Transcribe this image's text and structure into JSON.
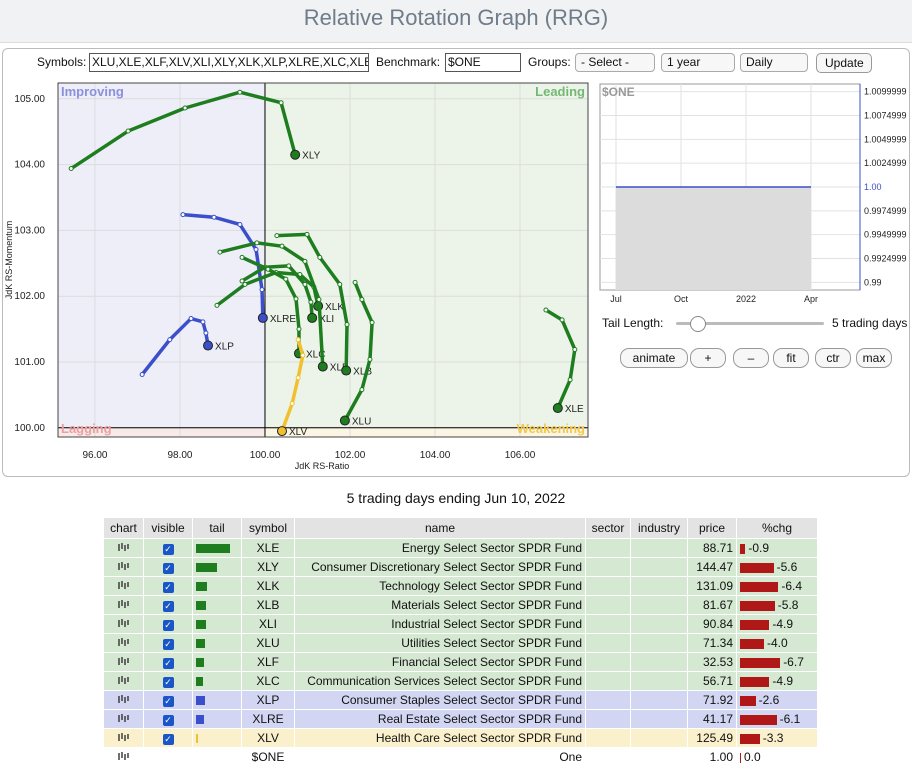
{
  "header": {
    "title": "Relative Rotation Graph (RRG)"
  },
  "controls": {
    "symbols_label": "Symbols:",
    "symbols": "XLU,XLE,XLF,XLV,XLI,XLY,XLK,XLP,XLRE,XLC,XLB",
    "benchmark_label": "Benchmark:",
    "benchmark": "$ONE",
    "groups_label": "Groups:",
    "groups": "- Select -",
    "period": "1 year",
    "interval": "Daily",
    "update": "Update",
    "tail_length_label": "Tail Length:",
    "tail_length": "5 trading days",
    "buttons": [
      "animate",
      "+",
      "–",
      "fit",
      "ctr",
      "max"
    ]
  },
  "chart_data": [
    {
      "type": "rrg",
      "xlabel": "JdK RS-Ratio",
      "ylabel": "JdK RS-Momentum",
      "xlim": [
        95.13,
        107.6
      ],
      "ylim": [
        99.86,
        105.24
      ],
      "xticks": [
        {
          "value": 96,
          "label": "96.00"
        },
        {
          "value": 98,
          "label": "98.00"
        },
        {
          "value": 100,
          "label": "100.00"
        },
        {
          "value": 102,
          "label": "102.00"
        },
        {
          "value": 104,
          "label": "104.00"
        },
        {
          "value": 106,
          "label": "106.00"
        }
      ],
      "yticks": [
        {
          "value": 100,
          "label": "100.00"
        },
        {
          "value": 101,
          "label": "101.00"
        },
        {
          "value": 102,
          "label": "102.00"
        },
        {
          "value": 103,
          "label": "103.00"
        },
        {
          "value": 104,
          "label": "104.00"
        },
        {
          "value": 105,
          "label": "105.00"
        }
      ],
      "reference_lines": {
        "x": 100,
        "y": 100
      },
      "quadrants": {
        "improving": "Improving",
        "leading": "Leading",
        "lagging": "Lagging",
        "weakening": "Weakening"
      },
      "series": [
        {
          "name": "XLY",
          "color": "#1e7d1e",
          "x": [
            95.44,
            96.78,
            98.12,
            99.41,
            100.38,
            100.71
          ],
          "y": [
            103.94,
            104.51,
            104.86,
            105.1,
            104.94,
            104.15
          ]
        },
        {
          "name": "XLE",
          "color": "#1e7d1e",
          "x": [
            106.61,
            106.99,
            107.29,
            107.18,
            106.89
          ],
          "y": [
            101.79,
            101.64,
            101.19,
            100.73,
            100.3
          ]
        },
        {
          "name": "XLP",
          "color": "#3a4fc9",
          "x": [
            97.11,
            97.76,
            98.26,
            98.54,
            98.61,
            98.66
          ],
          "y": [
            100.81,
            101.34,
            101.66,
            101.61,
            101.44,
            101.25
          ]
        },
        {
          "name": "XLRE",
          "color": "#3a4fc9",
          "x": [
            98.07,
            98.8,
            99.41,
            99.79,
            99.93,
            99.95
          ],
          "y": [
            103.24,
            103.2,
            103.09,
            102.71,
            102.1,
            101.67
          ]
        },
        {
          "name": "XLK",
          "color": "#1e7d1e",
          "x": [
            98.87,
            99.53,
            100.26,
            100.82,
            101.15,
            101.25
          ],
          "y": [
            101.86,
            102.18,
            102.36,
            102.33,
            102.14,
            101.85
          ]
        },
        {
          "name": "XLI",
          "color": "#1e7d1e",
          "x": [
            99.46,
            100,
            100.56,
            100.94,
            101.08,
            101.11
          ],
          "y": [
            102.23,
            102.44,
            102.46,
            102.18,
            101.91,
            101.67
          ]
        },
        {
          "name": "XLC",
          "color": "#1e7d1e",
          "x": [
            99.46,
            100.07,
            100.49,
            100.73,
            100.8,
            100.8
          ],
          "y": [
            102.59,
            102.41,
            102.26,
            101.96,
            101.5,
            101.13
          ]
        },
        {
          "name": "XLF",
          "color": "#1e7d1e",
          "x": [
            98.94,
            99.81,
            100.4,
            100.94,
            101.27,
            101.36
          ],
          "y": [
            102.67,
            102.81,
            102.76,
            102.53,
            101.95,
            100.93
          ]
        },
        {
          "name": "XLB",
          "color": "#1e7d1e",
          "x": [
            100.28,
            100.99,
            101.29,
            101.76,
            101.93,
            101.91
          ],
          "y": [
            102.92,
            102.94,
            102.59,
            102.18,
            101.57,
            100.87
          ]
        },
        {
          "name": "XLU",
          "color": "#1e7d1e",
          "x": [
            102.12,
            102.28,
            102.52,
            102.47,
            102.28,
            101.88
          ],
          "y": [
            102.21,
            101.95,
            101.6,
            101.04,
            100.58,
            100.11
          ]
        },
        {
          "name": "XLV",
          "color": "#f2c02e",
          "x": [
            100.78,
            100.89,
            100.78,
            100.64,
            100.4
          ],
          "y": [
            101.34,
            101.1,
            100.76,
            100.37,
            99.95
          ]
        }
      ]
    },
    {
      "type": "line",
      "title": "$ONE",
      "categories": [
        "Jul",
        "Oct",
        "2022",
        "Apr"
      ],
      "values": [
        1,
        1,
        1,
        1
      ],
      "color": "#3a4fc9",
      "ylim": [
        0.9892,
        1.0108
      ],
      "yticks": [
        0.99,
        0.9924999,
        0.9949999,
        0.9974999,
        {
          "value": 1,
          "label": "1.00"
        },
        1.0024999,
        1.0049999,
        1.0074999,
        1.0099999
      ]
    }
  ],
  "table": {
    "caption": "5 trading days ending Jun 10, 2022",
    "columns": [
      "chart",
      "visible",
      "tail",
      "symbol",
      "name",
      "sector",
      "industry",
      "price",
      "%chg"
    ],
    "rows": [
      {
        "symbol": "XLE",
        "name": "Energy Select Sector SPDR Fund",
        "price": "88.71",
        "pchg": "-0.9"
      },
      {
        "symbol": "XLY",
        "name": "Consumer Discretionary Select Sector SPDR Fund",
        "price": "144.47",
        "pchg": "-5.6"
      },
      {
        "symbol": "XLK",
        "name": "Technology Select Sector SPDR Fund",
        "price": "131.09",
        "pchg": "-6.4"
      },
      {
        "symbol": "XLB",
        "name": "Materials Select Sector SPDR Fund",
        "price": "81.67",
        "pchg": "-5.8"
      },
      {
        "symbol": "XLI",
        "name": "Industrial Select Sector SPDR Fund",
        "price": "90.84",
        "pchg": "-4.9"
      },
      {
        "symbol": "XLU",
        "name": "Utilities Select Sector SPDR Fund",
        "price": "71.34",
        "pchg": "-4.0"
      },
      {
        "symbol": "XLF",
        "name": "Financial Select Sector SPDR Fund",
        "price": "32.53",
        "pchg": "-6.7"
      },
      {
        "symbol": "XLC",
        "name": "Communication Services Select Sector SPDR Fund",
        "price": "56.71",
        "pchg": "-4.9"
      },
      {
        "symbol": "XLP",
        "name": "Consumer Staples Select Sector SPDR Fund",
        "price": "71.92",
        "pchg": "-2.6"
      },
      {
        "symbol": "XLRE",
        "name": "Real Estate Select Sector SPDR Fund",
        "price": "41.17",
        "pchg": "-6.1"
      },
      {
        "symbol": "XLV",
        "name": "Health Care Select Sector SPDR Fund",
        "price": "125.49",
        "pchg": "-3.3"
      },
      {
        "symbol": "$ONE",
        "name": "One",
        "price": "1.00",
        "pchg": "0.0"
      }
    ]
  }
}
